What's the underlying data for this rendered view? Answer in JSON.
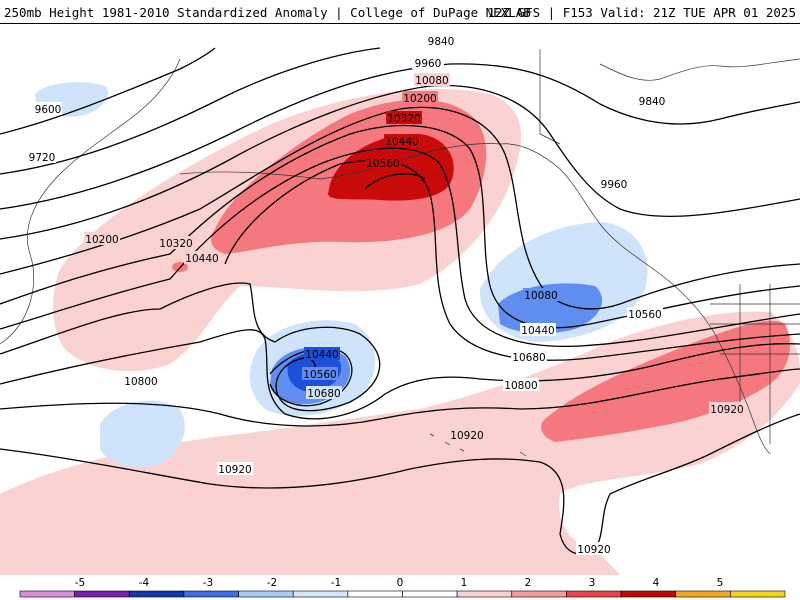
{
  "header": {
    "title": "250mb Height 1981-2010 Standardized Anomaly | College of DuPage NEXLAB",
    "run_info": "12Z GFS | F153 Valid: 21Z TUE APR 01 2025"
  },
  "contour_labels": [
    {
      "id": "c9840a",
      "text": "9840"
    },
    {
      "id": "c9960a",
      "text": "9960"
    },
    {
      "id": "c10080a",
      "text": "10080"
    },
    {
      "id": "c10200a",
      "text": "10200"
    },
    {
      "id": "c10320a",
      "text": "10320"
    },
    {
      "id": "c10440a",
      "text": "10440"
    },
    {
      "id": "c10560a",
      "text": "10560"
    },
    {
      "id": "c9600",
      "text": "9600"
    },
    {
      "id": "c9720",
      "text": "9720"
    },
    {
      "id": "c10200b",
      "text": "10200"
    },
    {
      "id": "c10320b",
      "text": "10320"
    },
    {
      "id": "c10440b",
      "text": "10440"
    },
    {
      "id": "c9840b",
      "text": "9840"
    },
    {
      "id": "c9960b",
      "text": "9960"
    },
    {
      "id": "c10080b",
      "text": "10080"
    },
    {
      "id": "c10440c",
      "text": "10440"
    },
    {
      "id": "c10560b",
      "text": "10560"
    },
    {
      "id": "c10440d",
      "text": "10440"
    },
    {
      "id": "c10560c",
      "text": "10560"
    },
    {
      "id": "c10680a",
      "text": "10680"
    },
    {
      "id": "c10680b",
      "text": "10680"
    },
    {
      "id": "c10800a",
      "text": "10800"
    },
    {
      "id": "c10800b",
      "text": "10800"
    },
    {
      "id": "c10920a",
      "text": "10920"
    },
    {
      "id": "c10920b",
      "text": "10920"
    },
    {
      "id": "c10920c",
      "text": "10920"
    },
    {
      "id": "c10920d",
      "text": "10920"
    }
  ],
  "colorbar": {
    "ticks": [
      "-5",
      "-4",
      "-3",
      "-2",
      "-1",
      "0",
      "1",
      "2",
      "3",
      "4",
      "5"
    ],
    "colors": [
      "#d58fd9",
      "#7a1fb5",
      "#1436b0",
      "#3f6ee8",
      "#a9ccf2",
      "#d7e8fb",
      "#ffffff",
      "#ffffff",
      "#fbd0d0",
      "#f59a9a",
      "#e8454a",
      "#c00a0a",
      "#f5a623",
      "#f7d21e"
    ]
  },
  "colors": {
    "neg_strong": "#1e4fd8",
    "neg_mid": "#5f8ef0",
    "neg_weak": "#cfe3fa",
    "pos_weak": "#fbd2d2",
    "pos_mid": "#f4787d",
    "pos_strong": "#c80a0a"
  }
}
